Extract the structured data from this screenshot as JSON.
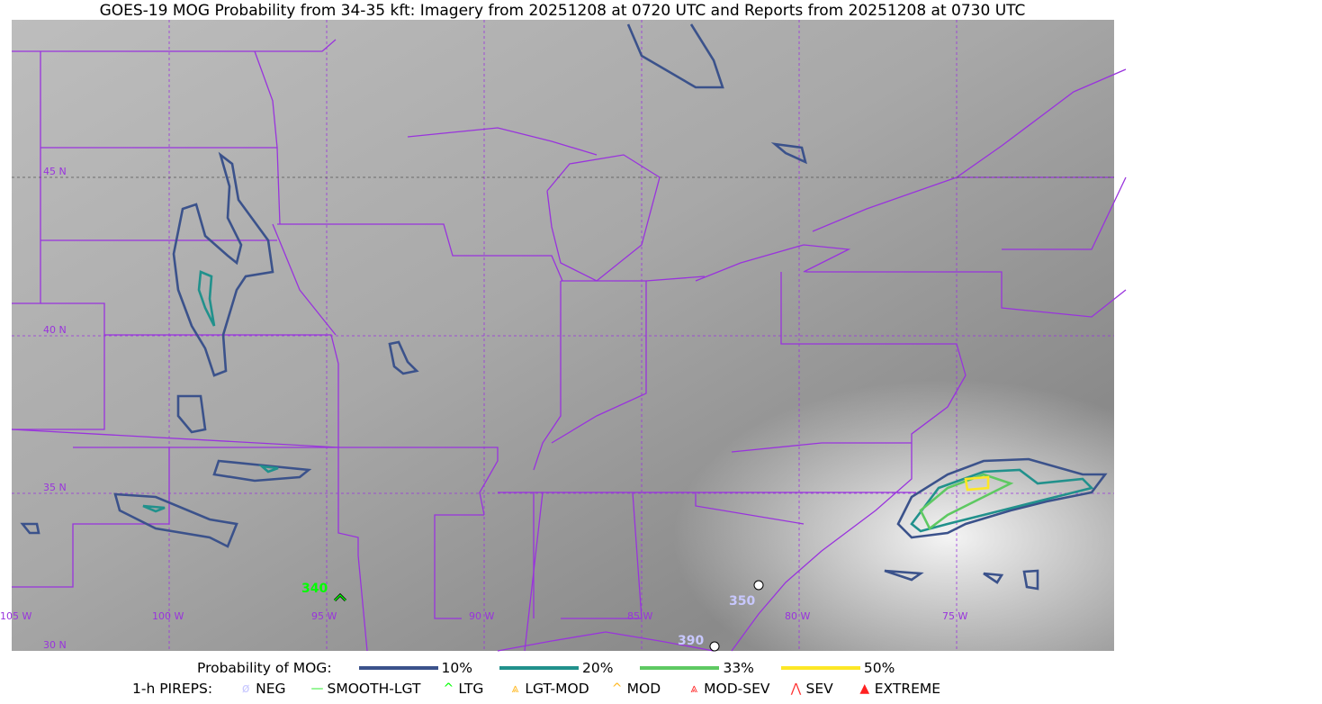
{
  "title": "GOES-19 MOG Probability from 34-35 kft: Imagery from 20251208 at 0720 UTC and Reports from 20251208 at 0730 UTC",
  "map": {
    "lon_labels": [
      "105 W",
      "100 W",
      "95 W",
      "90 W",
      "85 W",
      "80 W",
      "75 W"
    ],
    "lat_labels": [
      "45 N",
      "40 N",
      "35 N",
      "30 N"
    ],
    "border_color": "#9933dd",
    "reports": [
      {
        "type": "LTG",
        "altitude": "340",
        "color": "#00ff00"
      },
      {
        "type": "NEG",
        "altitude": "350",
        "color": "#c8c8ff"
      },
      {
        "type": "NEG",
        "altitude": "390",
        "color": "#c8c8ff"
      }
    ]
  },
  "legend": {
    "prob_title": "Probability of MOG:",
    "prob_items": [
      {
        "label": "10%",
        "color": "#3b528b"
      },
      {
        "label": "20%",
        "color": "#21918c"
      },
      {
        "label": "33%",
        "color": "#5ec962"
      },
      {
        "label": "50%",
        "color": "#fde725"
      }
    ],
    "pirep_title": "1-h PIREPS:",
    "pirep_items": [
      {
        "label": "NEG",
        "icon": "slashed-circle",
        "color": "#c8c8ff"
      },
      {
        "label": "SMOOTH-LGT",
        "icon": "line",
        "color": "#33ee33"
      },
      {
        "label": "LTG",
        "icon": "caret",
        "color": "#00ff00"
      },
      {
        "label": "LGT-MOD",
        "icon": "caret-bar",
        "color": "#ffb820"
      },
      {
        "label": "MOD",
        "icon": "caret",
        "color": "#ffb820"
      },
      {
        "label": "MOD-SEV",
        "icon": "double-caret-bar",
        "color": "#ff3030"
      },
      {
        "label": "SEV",
        "icon": "double-caret",
        "color": "#ff3030"
      },
      {
        "label": "EXTREME",
        "icon": "filled-triangle",
        "color": "#ff2020"
      }
    ]
  }
}
